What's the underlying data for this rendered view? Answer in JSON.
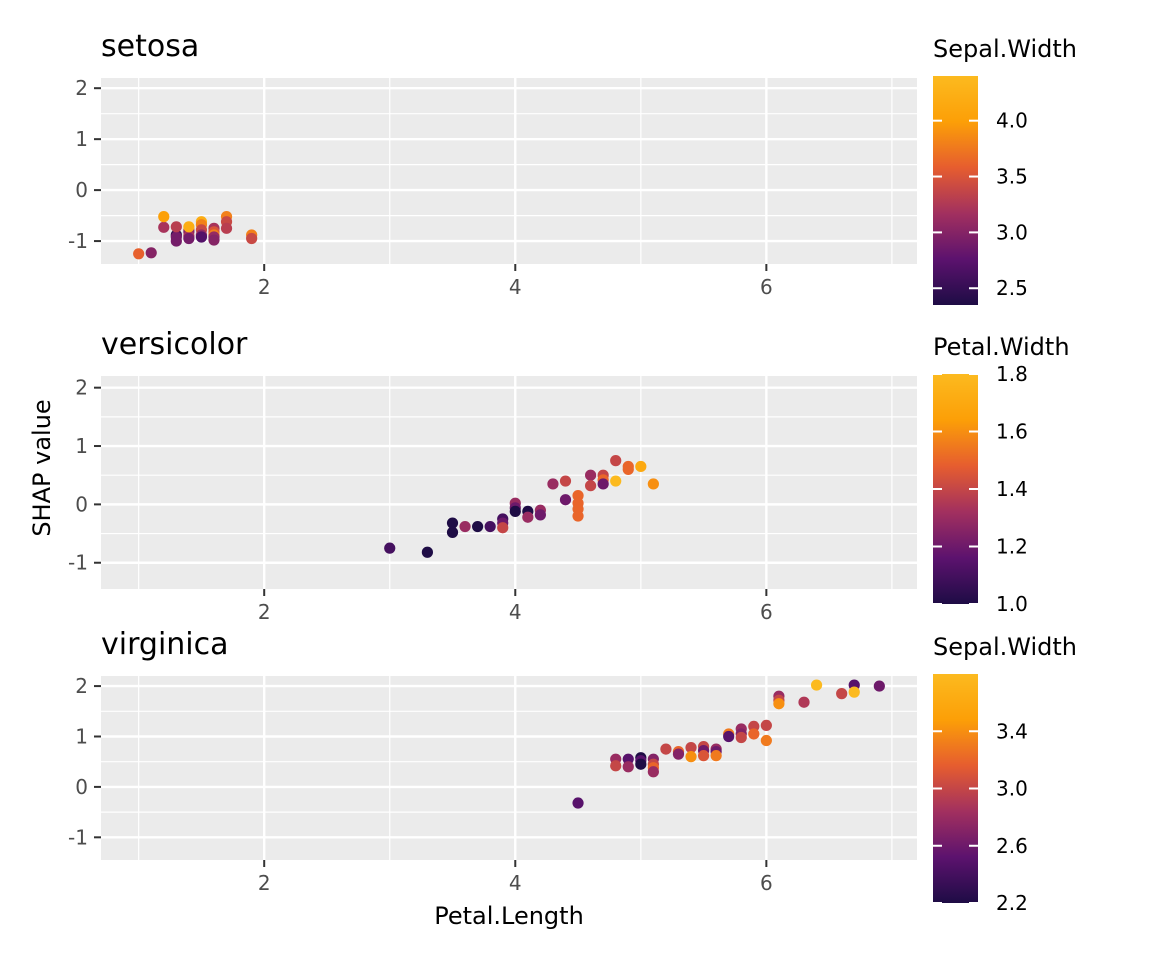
{
  "chart_data": {
    "type": "scatter",
    "xlabel": "Petal.Length",
    "ylabel": "SHAP value",
    "xlim": [
      0.7,
      7.2
    ],
    "x_ticks": [
      2,
      4,
      6
    ],
    "ylim": [
      -1.45,
      2.2
    ],
    "y_ticks": [
      2,
      1,
      0,
      -1
    ],
    "y_tick_labels": [
      "2",
      "1",
      "0",
      "-1"
    ],
    "grid": true,
    "colormap": [
      "#1e0c45",
      "#5c126e",
      "#a2305f",
      "#e65d2f",
      "#fc9f07",
      "#fcba1f"
    ],
    "panels": [
      {
        "title": "setosa",
        "legend": {
          "title": "Sepal.Width",
          "min": 2.35,
          "max": 4.4,
          "ticks": [
            2.5,
            3.0,
            3.5,
            4.0
          ],
          "tick_labels": [
            "2.5",
            "3.0",
            "3.5",
            "4.0"
          ]
        },
        "points": [
          {
            "x": 1.0,
            "y": -1.25,
            "c": 3.6
          },
          {
            "x": 1.1,
            "y": -1.23,
            "c": 3.0
          },
          {
            "x": 1.2,
            "y": -0.73,
            "c": 3.2
          },
          {
            "x": 1.2,
            "y": -0.52,
            "c": 4.0
          },
          {
            "x": 1.3,
            "y": -0.88,
            "c": 2.45
          },
          {
            "x": 1.3,
            "y": -0.92,
            "c": 2.9
          },
          {
            "x": 1.3,
            "y": -1.0,
            "c": 2.9
          },
          {
            "x": 1.3,
            "y": -0.72,
            "c": 3.3
          },
          {
            "x": 1.4,
            "y": -0.78,
            "c": 3.4
          },
          {
            "x": 1.4,
            "y": -0.82,
            "c": 3.0
          },
          {
            "x": 1.4,
            "y": -0.9,
            "c": 3.2
          },
          {
            "x": 1.4,
            "y": -0.95,
            "c": 2.9
          },
          {
            "x": 1.4,
            "y": -0.72,
            "c": 4.2
          },
          {
            "x": 1.5,
            "y": -0.62,
            "c": 4.2
          },
          {
            "x": 1.5,
            "y": -0.68,
            "c": 3.8
          },
          {
            "x": 1.5,
            "y": -0.78,
            "c": 3.4
          },
          {
            "x": 1.5,
            "y": -0.88,
            "c": 3.1
          },
          {
            "x": 1.5,
            "y": -0.92,
            "c": 2.7
          },
          {
            "x": 1.6,
            "y": -0.75,
            "c": 3.2
          },
          {
            "x": 1.6,
            "y": -0.82,
            "c": 3.5
          },
          {
            "x": 1.6,
            "y": -0.88,
            "c": 3.8
          },
          {
            "x": 1.6,
            "y": -0.92,
            "c": 3.1
          },
          {
            "x": 1.6,
            "y": -0.98,
            "c": 3.0
          },
          {
            "x": 1.7,
            "y": -0.52,
            "c": 3.8
          },
          {
            "x": 1.7,
            "y": -0.62,
            "c": 3.4
          },
          {
            "x": 1.7,
            "y": -0.75,
            "c": 3.3
          },
          {
            "x": 1.9,
            "y": -0.88,
            "c": 3.8
          },
          {
            "x": 1.9,
            "y": -0.95,
            "c": 3.4
          }
        ]
      },
      {
        "title": "versicolor",
        "legend": {
          "title": "Petal.Width",
          "min": 1.0,
          "max": 1.8,
          "ticks": [
            1.0,
            1.2,
            1.4,
            1.6,
            1.8
          ],
          "tick_labels": [
            "1.0",
            "1.2",
            "1.4",
            "1.6",
            "1.8"
          ]
        },
        "points": [
          {
            "x": 3.0,
            "y": -0.75,
            "c": 1.1
          },
          {
            "x": 3.3,
            "y": -0.82,
            "c": 1.0
          },
          {
            "x": 3.5,
            "y": -0.32,
            "c": 1.0
          },
          {
            "x": 3.5,
            "y": -0.48,
            "c": 1.0
          },
          {
            "x": 3.6,
            "y": -0.38,
            "c": 1.3
          },
          {
            "x": 3.7,
            "y": -0.38,
            "c": 1.0
          },
          {
            "x": 3.8,
            "y": -0.38,
            "c": 1.1
          },
          {
            "x": 3.9,
            "y": -0.25,
            "c": 1.1
          },
          {
            "x": 3.9,
            "y": -0.32,
            "c": 1.2
          },
          {
            "x": 3.9,
            "y": -0.4,
            "c": 1.4
          },
          {
            "x": 4.0,
            "y": 0.02,
            "c": 1.3
          },
          {
            "x": 4.0,
            "y": -0.06,
            "c": 1.2
          },
          {
            "x": 4.0,
            "y": -0.12,
            "c": 1.0
          },
          {
            "x": 4.1,
            "y": -0.12,
            "c": 1.0
          },
          {
            "x": 4.1,
            "y": -0.22,
            "c": 1.3
          },
          {
            "x": 4.2,
            "y": -0.1,
            "c": 1.3
          },
          {
            "x": 4.2,
            "y": -0.18,
            "c": 1.2
          },
          {
            "x": 4.3,
            "y": 0.35,
            "c": 1.3
          },
          {
            "x": 4.4,
            "y": 0.4,
            "c": 1.4
          },
          {
            "x": 4.4,
            "y": 0.08,
            "c": 1.2
          },
          {
            "x": 4.5,
            "y": 0.15,
            "c": 1.5
          },
          {
            "x": 4.5,
            "y": 0.02,
            "c": 1.5
          },
          {
            "x": 4.5,
            "y": -0.08,
            "c": 1.5
          },
          {
            "x": 4.5,
            "y": -0.2,
            "c": 1.5
          },
          {
            "x": 4.6,
            "y": 0.5,
            "c": 1.3
          },
          {
            "x": 4.6,
            "y": 0.32,
            "c": 1.4
          },
          {
            "x": 4.7,
            "y": 0.5,
            "c": 1.4
          },
          {
            "x": 4.7,
            "y": 0.42,
            "c": 1.5
          },
          {
            "x": 4.7,
            "y": 0.35,
            "c": 1.2
          },
          {
            "x": 4.8,
            "y": 0.75,
            "c": 1.4
          },
          {
            "x": 4.8,
            "y": 0.4,
            "c": 1.8
          },
          {
            "x": 4.9,
            "y": 0.65,
            "c": 1.5
          },
          {
            "x": 4.9,
            "y": 0.6,
            "c": 1.5
          },
          {
            "x": 5.0,
            "y": 0.65,
            "c": 1.7
          },
          {
            "x": 5.1,
            "y": 0.35,
            "c": 1.6
          }
        ]
      },
      {
        "title": "virginica",
        "legend": {
          "title": "Sepal.Width",
          "min": 2.2,
          "max": 3.8,
          "ticks": [
            2.2,
            2.6,
            3.0,
            3.4
          ],
          "tick_labels": [
            "2.2",
            "2.6",
            "3.0",
            "3.4"
          ]
        },
        "points": [
          {
            "x": 4.5,
            "y": -0.32,
            "c": 2.5
          },
          {
            "x": 4.8,
            "y": 0.55,
            "c": 2.8
          },
          {
            "x": 4.8,
            "y": 0.42,
            "c": 3.0
          },
          {
            "x": 4.9,
            "y": 0.55,
            "c": 2.5
          },
          {
            "x": 4.9,
            "y": 0.4,
            "c": 2.8
          },
          {
            "x": 5.0,
            "y": 0.58,
            "c": 2.2
          },
          {
            "x": 5.0,
            "y": 0.52,
            "c": 2.5
          },
          {
            "x": 5.0,
            "y": 0.45,
            "c": 2.0
          },
          {
            "x": 5.1,
            "y": 0.55,
            "c": 2.7
          },
          {
            "x": 5.1,
            "y": 0.45,
            "c": 3.0
          },
          {
            "x": 5.1,
            "y": 0.38,
            "c": 3.2
          },
          {
            "x": 5.1,
            "y": 0.3,
            "c": 2.8
          },
          {
            "x": 5.2,
            "y": 0.75,
            "c": 3.0
          },
          {
            "x": 5.3,
            "y": 0.7,
            "c": 3.2
          },
          {
            "x": 5.3,
            "y": 0.65,
            "c": 2.7
          },
          {
            "x": 5.4,
            "y": 0.78,
            "c": 3.0
          },
          {
            "x": 5.4,
            "y": 0.6,
            "c": 3.4
          },
          {
            "x": 5.5,
            "y": 0.8,
            "c": 3.0
          },
          {
            "x": 5.5,
            "y": 0.72,
            "c": 2.6
          },
          {
            "x": 5.5,
            "y": 0.62,
            "c": 3.1
          },
          {
            "x": 5.6,
            "y": 0.75,
            "c": 2.8
          },
          {
            "x": 5.6,
            "y": 0.7,
            "c": 2.6
          },
          {
            "x": 5.6,
            "y": 0.62,
            "c": 3.3
          },
          {
            "x": 5.7,
            "y": 1.05,
            "c": 3.3
          },
          {
            "x": 5.7,
            "y": 1.0,
            "c": 2.5
          },
          {
            "x": 5.8,
            "y": 1.15,
            "c": 2.8
          },
          {
            "x": 5.8,
            "y": 1.05,
            "c": 2.7
          },
          {
            "x": 5.8,
            "y": 0.98,
            "c": 3.0
          },
          {
            "x": 5.9,
            "y": 1.2,
            "c": 3.0
          },
          {
            "x": 5.9,
            "y": 1.05,
            "c": 3.2
          },
          {
            "x": 6.0,
            "y": 1.22,
            "c": 3.0
          },
          {
            "x": 6.0,
            "y": 0.92,
            "c": 3.3
          },
          {
            "x": 6.1,
            "y": 1.8,
            "c": 2.8
          },
          {
            "x": 6.1,
            "y": 1.72,
            "c": 3.0
          },
          {
            "x": 6.1,
            "y": 1.65,
            "c": 3.4
          },
          {
            "x": 6.3,
            "y": 1.68,
            "c": 2.9
          },
          {
            "x": 6.4,
            "y": 2.02,
            "c": 3.8
          },
          {
            "x": 6.6,
            "y": 1.85,
            "c": 3.0
          },
          {
            "x": 6.7,
            "y": 2.02,
            "c": 2.5
          },
          {
            "x": 6.7,
            "y": 1.88,
            "c": 3.8
          },
          {
            "x": 6.9,
            "y": 2.0,
            "c": 2.6
          }
        ]
      }
    ]
  }
}
